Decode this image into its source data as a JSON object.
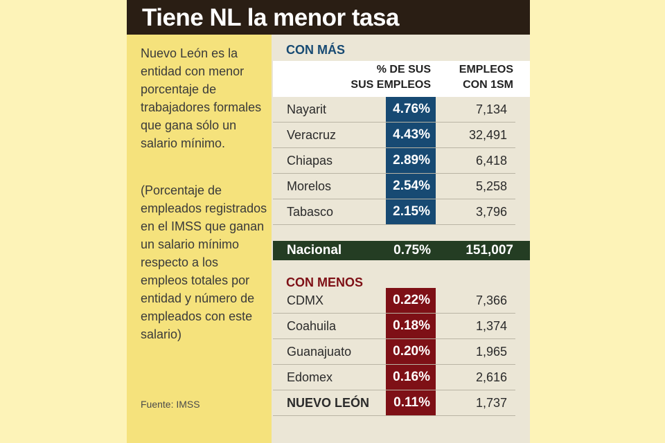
{
  "title": "Tiene NL la menor tasa",
  "description": "Nuevo León es la entidad con menor porcentaje de trabajadores formales que gana sólo un salario mínimo.",
  "note": "(Porcentaje de empleados registrados en el IMSS que ganan un salario mínimo respecto a los empleos totales por entidad y número de empleados con este salario)",
  "source": "Fuente: IMSS",
  "colors": {
    "mas": "#174a73",
    "menos": "#7e1016",
    "nacional": "#243d23",
    "title_bg": "#2a1e14"
  },
  "chart_data": {
    "type": "table",
    "title": "Tiene NL la menor tasa",
    "columns": [
      "% DE SUS\nSUS EMPLEOS",
      "EMPLEOS\nCON 1SM"
    ],
    "sections": [
      {
        "name": "CON MÁS",
        "rows": [
          {
            "state": "Nayarit",
            "pct_label": "4.76%",
            "pct": 4.76,
            "empleos_label": "7,134",
            "empleos": 7134
          },
          {
            "state": "Veracruz",
            "pct_label": "4.43%",
            "pct": 4.43,
            "empleos_label": "32,491",
            "empleos": 32491
          },
          {
            "state": "Chiapas",
            "pct_label": "2.89%",
            "pct": 2.89,
            "empleos_label": "6,418",
            "empleos": 6418
          },
          {
            "state": "Morelos",
            "pct_label": "2.54%",
            "pct": 2.54,
            "empleos_label": "5,258",
            "empleos": 5258
          },
          {
            "state": "Tabasco",
            "pct_label": "2.15%",
            "pct": 2.15,
            "empleos_label": "3,796",
            "empleos": 3796
          }
        ]
      },
      {
        "name": "CON MENOS",
        "rows": [
          {
            "state": "CDMX",
            "pct_label": "0.22%",
            "pct": 0.22,
            "empleos_label": "7,366",
            "empleos": 7366
          },
          {
            "state": "Coahuila",
            "pct_label": "0.18%",
            "pct": 0.18,
            "empleos_label": "1,374",
            "empleos": 1374
          },
          {
            "state": "Guanajuato",
            "pct_label": "0.20%",
            "pct": 0.2,
            "empleos_label": "1,965",
            "empleos": 1965
          },
          {
            "state": "Edomex",
            "pct_label": "0.16%",
            "pct": 0.16,
            "empleos_label": "2,616",
            "empleos": 2616
          },
          {
            "state": "NUEVO LEÓN",
            "pct_label": "0.11%",
            "pct": 0.11,
            "empleos_label": "1,737",
            "empleos": 1737
          }
        ]
      }
    ],
    "national": {
      "label": "Nacional",
      "pct_label": "0.75%",
      "pct": 0.75,
      "empleos_label": "151,007",
      "empleos": 151007
    }
  }
}
